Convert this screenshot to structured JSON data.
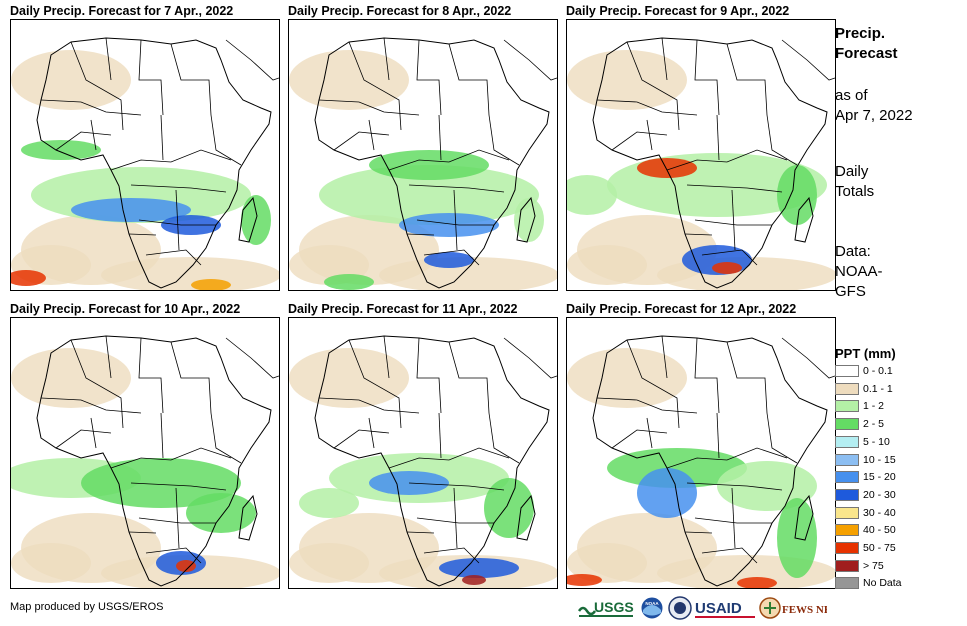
{
  "panels": [
    {
      "title": "Daily Precip. Forecast for 7 Apr., 2022"
    },
    {
      "title": "Daily Precip. Forecast for 8 Apr., 2022"
    },
    {
      "title": "Daily Precip. Forecast for 9 Apr., 2022"
    },
    {
      "title": "Daily Precip. Forecast for 10 Apr., 2022"
    },
    {
      "title": "Daily Precip. Forecast for 11 Apr., 2022"
    },
    {
      "title": "Daily Precip. Forecast for 12 Apr., 2022"
    }
  ],
  "sidebar": {
    "title_line1": "Precip.",
    "title_line2": "Forecast",
    "asof_line1": "as of",
    "asof_line2": "Apr 7, 2022",
    "totals_line1": "Daily",
    "totals_line2": "Totals",
    "data_line1": "Data:",
    "data_line2": "NOAA-",
    "data_line3": "GFS"
  },
  "legend": {
    "title": "PPT (mm)",
    "items": [
      {
        "label": "0 - 0.1",
        "color": "#ffffff"
      },
      {
        "label": "0.1 - 1",
        "color": "#eedcbe"
      },
      {
        "label": "1 - 2",
        "color": "#b4f0a6"
      },
      {
        "label": "2 - 5",
        "color": "#64dc64"
      },
      {
        "label": "5 - 10",
        "color": "#b4eef2"
      },
      {
        "label": "10 - 15",
        "color": "#8cbef2"
      },
      {
        "label": "15 - 20",
        "color": "#4690ee"
      },
      {
        "label": "20 - 30",
        "color": "#1e5adc"
      },
      {
        "label": "30 - 40",
        "color": "#fae68c"
      },
      {
        "label": "40 - 50",
        "color": "#f5a000"
      },
      {
        "label": "50 - 75",
        "color": "#e63200"
      },
      {
        "label": "> 75",
        "color": "#a01e1e"
      },
      {
        "label": "No Data",
        "color": "#969696"
      }
    ]
  },
  "footer": {
    "credit": "Map produced by USGS/EROS",
    "logos": {
      "usgs": "USGS",
      "noaa": "NOAA",
      "usaid": "USAID",
      "fewsnet": "FEWS NET"
    }
  }
}
